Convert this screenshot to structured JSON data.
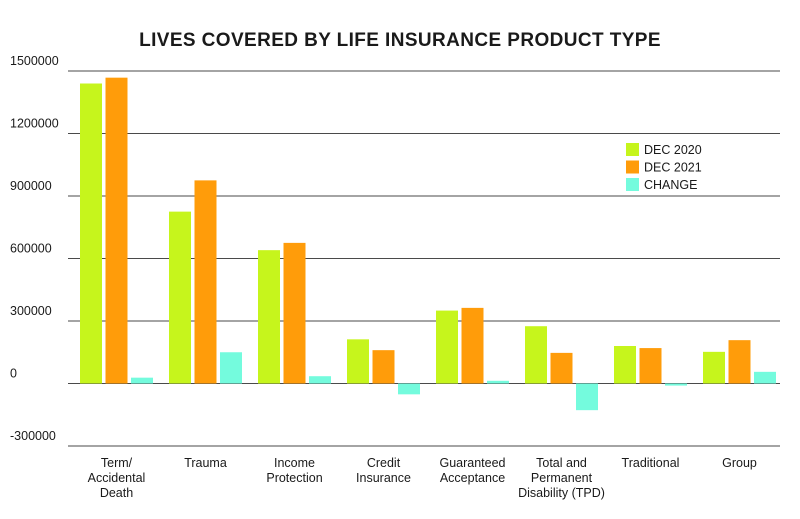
{
  "chart_data": {
    "type": "bar",
    "title": "LIVES COVERED BY LIFE INSURANCE PRODUCT TYPE",
    "categories": [
      [
        "Term/",
        "Accidental",
        "Death"
      ],
      [
        "Trauma"
      ],
      [
        "Income",
        "Protection"
      ],
      [
        "Credit",
        "Insurance"
      ],
      [
        "Guaranteed",
        "Acceptance"
      ],
      [
        "Total and",
        "Permanent",
        "Disability (TPD)"
      ],
      [
        "Traditional"
      ],
      [
        "Group"
      ]
    ],
    "series": [
      {
        "name": "DEC 2020",
        "color": "#c6f51c",
        "values": [
          1440000,
          825000,
          640000,
          212000,
          350000,
          275000,
          180000,
          152000
        ]
      },
      {
        "name": "DEC 2021",
        "color": "#ff9c0a",
        "values": [
          1468000,
          975000,
          675000,
          160000,
          363000,
          147000,
          170000,
          208000
        ]
      },
      {
        "name": "CHANGE",
        "color": "#74fbdd",
        "values": [
          28000,
          150000,
          35000,
          -52000,
          13000,
          -128000,
          -10000,
          56000
        ]
      }
    ],
    "y_ticks": [
      1500000,
      1200000,
      900000,
      600000,
      300000,
      0,
      -300000
    ],
    "y_tick_labels": [
      "1500000",
      "1200000",
      "900000",
      "600000",
      "300000",
      "0",
      "-300000"
    ],
    "ylim": [
      -300000,
      1500000
    ],
    "grid": true,
    "legend_position": "right"
  }
}
